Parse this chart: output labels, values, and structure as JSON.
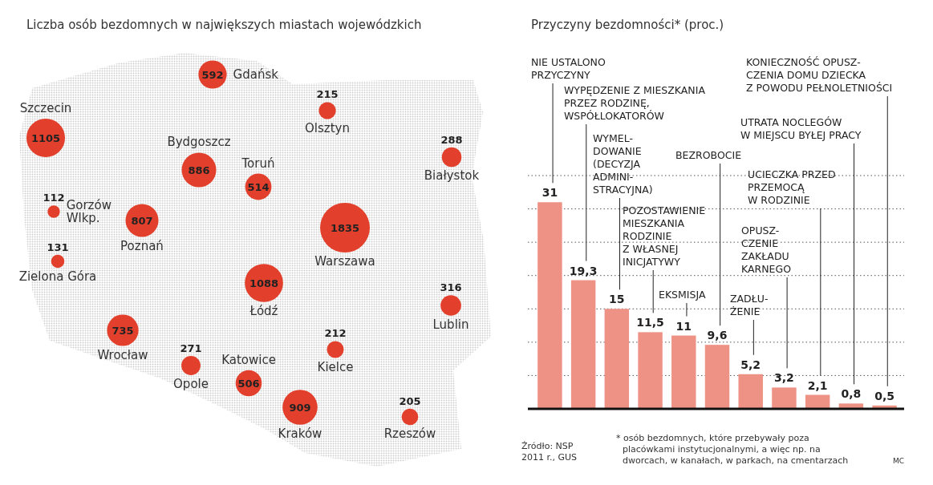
{
  "chart_data": [
    {
      "type": "other",
      "title": "Liczba osób bezdomnych w największych miastach wojewódzkich",
      "categories": [
        "Gdańsk",
        "Szczecin",
        "Olsztyn",
        "Białystok",
        "Bydgoszcz",
        "Toruń",
        "Gorzów\nWlkp.",
        "Poznań",
        "Warszawa",
        "Zielona Góra",
        "Łódź",
        "Lublin",
        "Wrocław",
        "Kielce",
        "Opole",
        "Katowice",
        "Kraków",
        "Rzeszów"
      ],
      "values": [
        592,
        1105,
        215,
        288,
        886,
        514,
        112,
        807,
        1835,
        131,
        1088,
        316,
        735,
        212,
        271,
        506,
        909,
        205
      ],
      "colors": [
        "#e2402c",
        "#e2402c",
        "#e2402c",
        "#e2402c",
        "#e2402c",
        "#e2402c",
        "#e2402c",
        "#e2402c",
        "#e2402c",
        "#e2402c",
        "#e2402c",
        "#e2402c",
        "#e2402c",
        "#e2402c",
        "#e2402c",
        "#e2402c",
        "#e2402c",
        "#e2402c"
      ],
      "data_labels": true
    },
    {
      "type": "bar",
      "title": "Przyczyny bezdomności* (proc.)",
      "categories": [
        null,
        null,
        null,
        null,
        null,
        null,
        null,
        null,
        null,
        null,
        null
      ],
      "values": [
        31,
        19.3,
        15,
        11.5,
        11,
        9.6,
        5.2,
        3.2,
        2.1,
        0.8,
        0.5
      ],
      "value_labels": [
        "31",
        "19,3",
        "15",
        "11,5",
        "11",
        "9,6",
        "5,2",
        "3,2",
        "2,1",
        "0,8",
        "0,5"
      ],
      "color": "#ee9286",
      "ylim": [
        0,
        35
      ],
      "yticks": [
        {
          "value": 5,
          "label": null
        },
        {
          "value": 10,
          "label": null
        },
        {
          "value": 15,
          "label": null
        },
        {
          "value": 20,
          "label": null
        },
        {
          "value": 25,
          "label": null
        },
        {
          "value": 30,
          "label": null
        },
        {
          "value": 35,
          "label": null
        }
      ],
      "grid": "y",
      "annotations": [
        "NIE USTALONO\nPRZYCZYNY",
        "WYPĘDZENIE Z MIESZKANIA\nPRZEZ RODZINĘ,\nWSPÓŁLOKATORÓW",
        "WYMEL-\nDOWANIE\n(DECYZJA\nADMINI-\nSTRACYJNA)",
        "POZOSTAWIENIE\nMIESZKANIA\nRODZINIE\nZ WŁASNEJ\nINICJATYWY",
        "EKSMISJA",
        "BEZROBOCIE",
        "ZADŁU-\nŻENIE",
        "OPUSZ-\nCZENIE\nZAKŁADU\nKARNEGO",
        "UCIECZKA PRZED\nPRZEMOCĄ\nW RODZINIE",
        "UTRATA NOCLEGÓW\nW MIEJSCU BYŁEJ PRACY",
        "KONIECZNOŚĆ OPUSZ-\nCZENIA DOMU DZIECKA\nZ POWODU PEŁNOLETNIOŚCI",
        "Źródło: NSP\n2011 r., GUS",
        "* osób bezdomnych, które przebywały poza\nplacówkami instytucjonalnymi, a więc np. na\ndworcach, w kanałach, w parkach, na cmentarzach",
        "MC"
      ]
    }
  ]
}
